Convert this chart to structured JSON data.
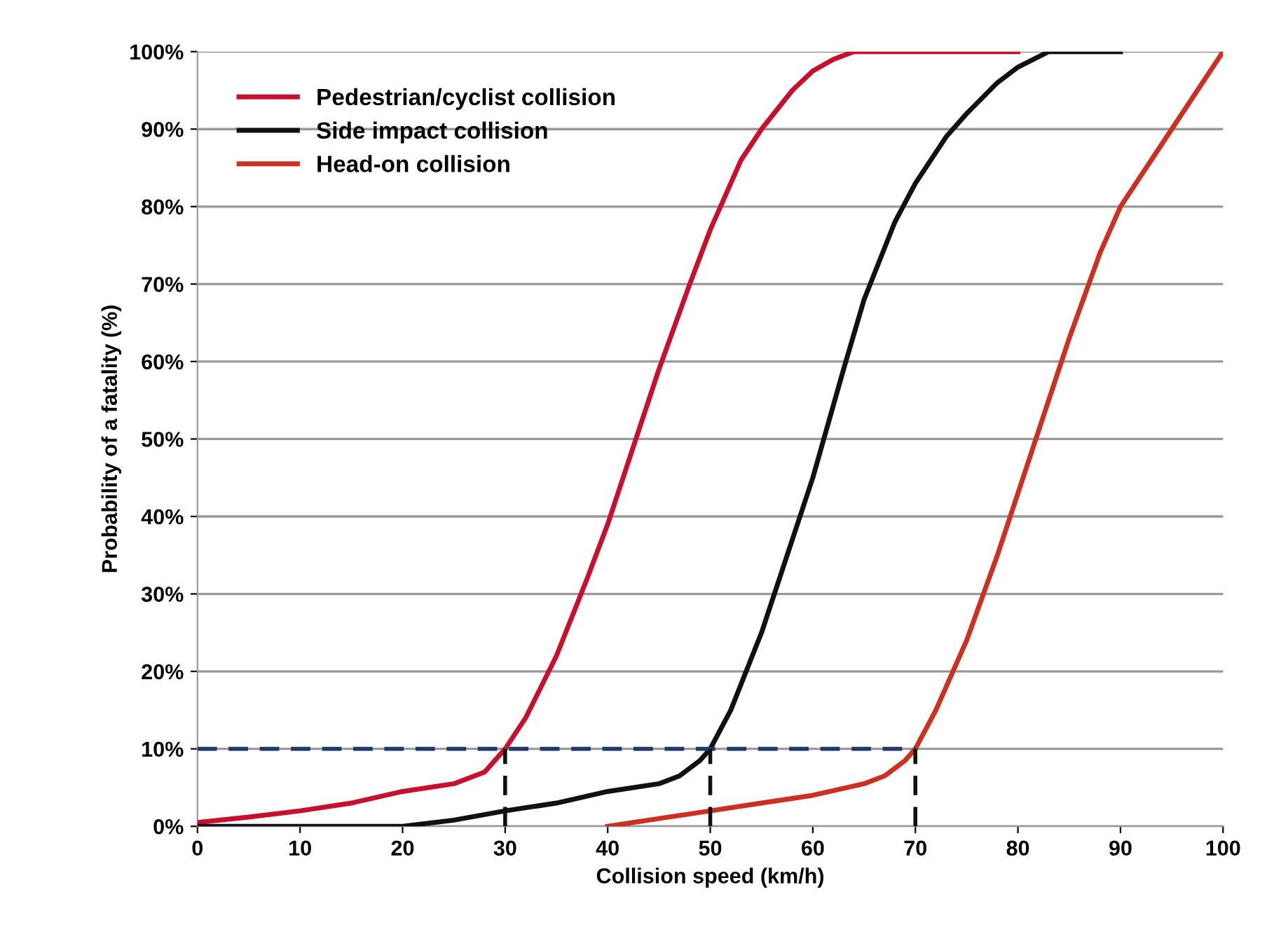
{
  "chart_data": {
    "type": "line",
    "xlabel": "Collision speed (km/h)",
    "ylabel": "Probability of a fatality (%)",
    "xlim": [
      0,
      100
    ],
    "xticks": [
      0,
      10,
      20,
      30,
      40,
      50,
      60,
      70,
      80,
      90,
      100
    ],
    "ylim": [
      0,
      100
    ],
    "yticks": [
      {
        "value": 0,
        "label": "0%"
      },
      {
        "value": 10,
        "label": "10%"
      },
      {
        "value": 20,
        "label": "20%"
      },
      {
        "value": 30,
        "label": "30%"
      },
      {
        "value": 40,
        "label": "40%"
      },
      {
        "value": 50,
        "label": "50%"
      },
      {
        "value": 60,
        "label": "60%"
      },
      {
        "value": 70,
        "label": "70%"
      },
      {
        "value": 80,
        "label": "80%"
      },
      {
        "value": 90,
        "label": "90%"
      },
      {
        "value": 100,
        "label": "100%"
      }
    ],
    "grid": "y",
    "legend": "top left",
    "marker": "none",
    "line_style": "solid",
    "series": [
      {
        "name": "Pedestrian/cyclist collision",
        "color": "#c8102e",
        "x": [
          0,
          5,
          10,
          15,
          20,
          25,
          28,
          30,
          32,
          35,
          38,
          40,
          43,
          45,
          48,
          50,
          53,
          55,
          58,
          60,
          62,
          64,
          70,
          80
        ],
        "values": [
          0.5,
          1.2,
          2,
          3,
          4.5,
          5.5,
          7,
          10,
          14,
          22,
          32,
          39,
          51,
          59,
          70,
          77,
          86,
          90,
          95,
          97.5,
          99,
          100,
          100,
          100
        ]
      },
      {
        "name": "Side impact collision",
        "color": "#111111",
        "x": [
          0,
          10,
          20,
          25,
          30,
          35,
          40,
          45,
          47,
          49,
          50,
          52,
          55,
          58,
          60,
          63,
          65,
          68,
          70,
          73,
          75,
          78,
          80,
          83,
          90
        ],
        "values": [
          0,
          0,
          0,
          0.8,
          2,
          3,
          4.5,
          5.5,
          6.5,
          8.5,
          10,
          15,
          25,
          37,
          45,
          59,
          68,
          78,
          83,
          89,
          92,
          96,
          98,
          100,
          100
        ]
      },
      {
        "name": "Head-on collision",
        "color": "#cc3020",
        "x": [
          40,
          45,
          50,
          55,
          60,
          65,
          67,
          69,
          70,
          72,
          75,
          78,
          80,
          83,
          85,
          88,
          90,
          93,
          95,
          100
        ],
        "values": [
          0,
          1,
          2,
          3,
          4,
          5.5,
          6.5,
          8.5,
          10,
          15,
          24,
          35,
          43,
          55,
          63,
          74,
          80,
          86,
          90,
          100
        ]
      },
      {
        "color": "#1f3a68",
        "line_style": "dashed",
        "x": [
          0,
          70
        ],
        "values": [
          10,
          10
        ]
      },
      {
        "color": "#111111",
        "line_style": "dashed",
        "x": [
          30,
          30
        ],
        "values": [
          0,
          10
        ]
      },
      {
        "color": "#111111",
        "line_style": "dashed",
        "x": [
          50,
          50
        ],
        "values": [
          0,
          10
        ]
      },
      {
        "color": "#111111",
        "line_style": "dashed",
        "x": [
          70,
          70
        ],
        "values": [
          0,
          10
        ]
      }
    ]
  }
}
